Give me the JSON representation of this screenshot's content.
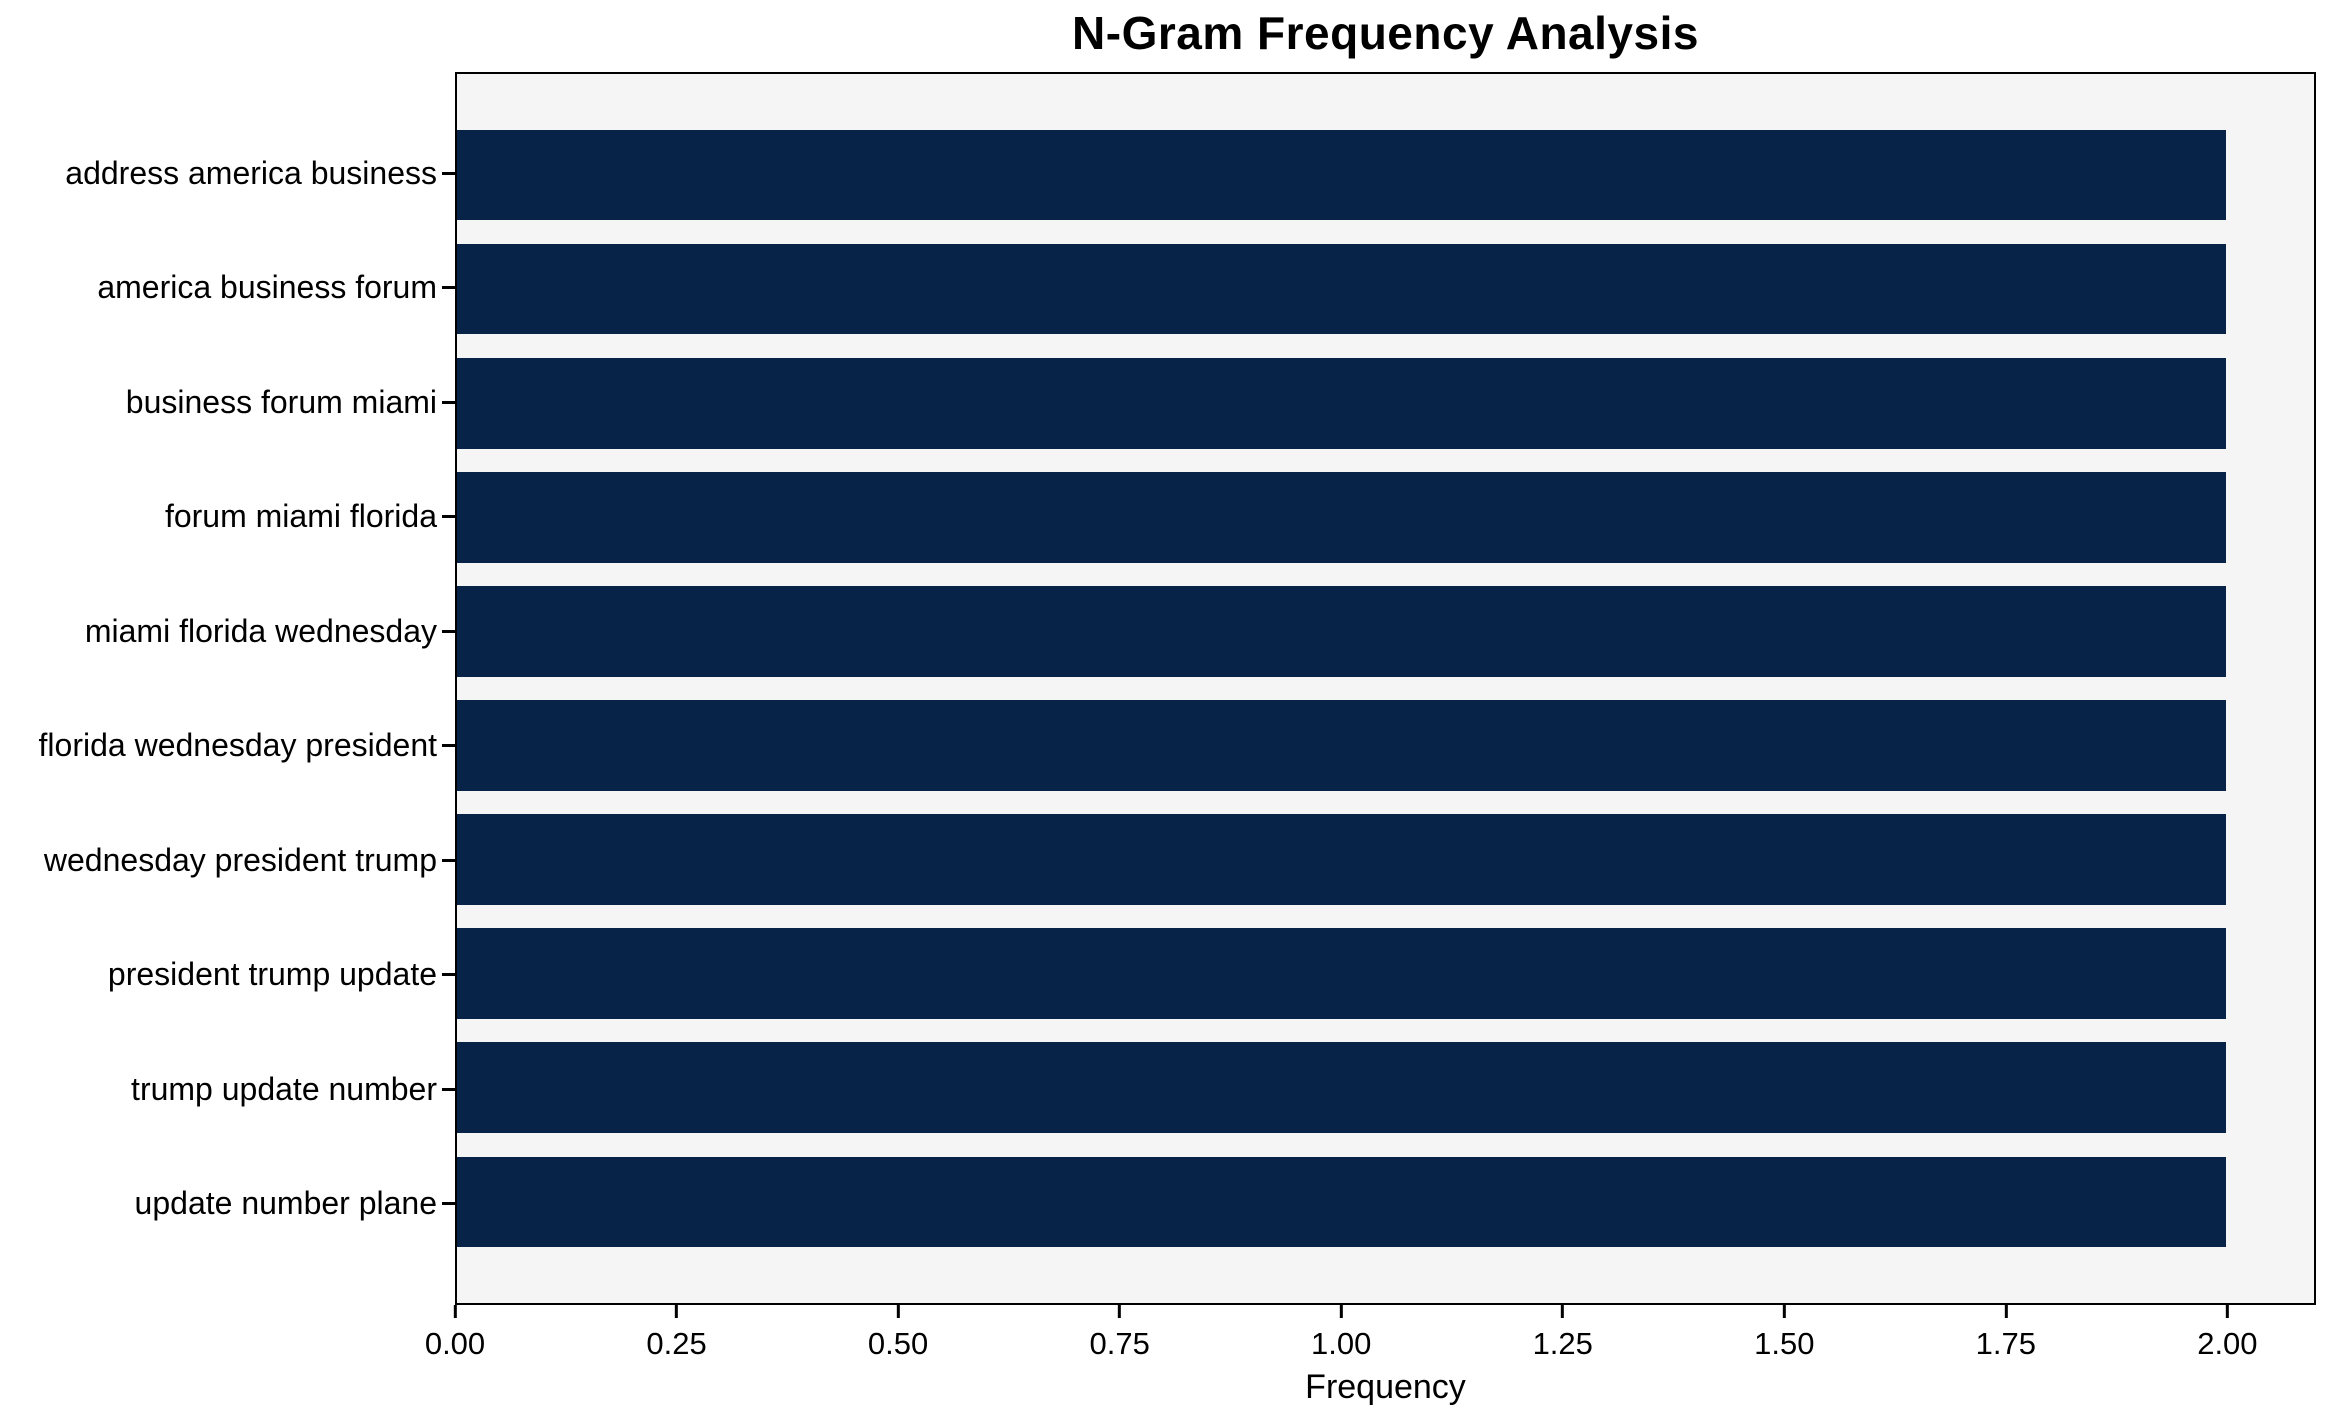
{
  "chart_data": {
    "type": "bar",
    "orientation": "horizontal",
    "title": "N-Gram Frequency Analysis",
    "xlabel": "Frequency",
    "ylabel": "",
    "categories": [
      "address america business",
      "america business forum",
      "business forum miami",
      "forum miami florida",
      "miami florida wednesday",
      "florida wednesday president",
      "wednesday president trump",
      "president trump update",
      "trump update number",
      "update number plane"
    ],
    "values": [
      2,
      2,
      2,
      2,
      2,
      2,
      2,
      2,
      2,
      2
    ],
    "x_ticks": [
      {
        "value": 0.0,
        "label": "0.00"
      },
      {
        "value": 0.25,
        "label": "0.25"
      },
      {
        "value": 0.5,
        "label": "0.50"
      },
      {
        "value": 0.75,
        "label": "0.75"
      },
      {
        "value": 1.0,
        "label": "1.00"
      },
      {
        "value": 1.25,
        "label": "1.25"
      },
      {
        "value": 1.5,
        "label": "1.50"
      },
      {
        "value": 1.75,
        "label": "1.75"
      },
      {
        "value": 2.0,
        "label": "2.00"
      }
    ],
    "xlim": [
      0,
      2.1
    ],
    "grid": false,
    "legend": null,
    "colors": {
      "bar": "#072448",
      "plot_background": "#f5f5f5",
      "figure_background": "#ffffff",
      "spine": "#000000",
      "text": "#000000"
    }
  }
}
